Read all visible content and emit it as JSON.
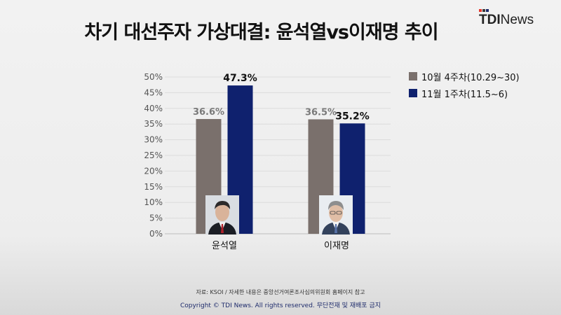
{
  "title": "차기 대선주자 가상대결: 윤석열vs이재명 추이",
  "logo": {
    "bold": "TDI",
    "regular": "News",
    "mark_colors": [
      "#e8372c",
      "#3a3a3a",
      "#1e2b6b"
    ]
  },
  "colors": {
    "series1": "#7a706c",
    "series2": "#0f216e",
    "label1": "#7a7a7a",
    "label2": "#111111",
    "grid": "#dcdcdc"
  },
  "icons": [
    "photo-yoon-icon",
    "photo-lee-icon"
  ],
  "chart_data": {
    "type": "bar",
    "categories": [
      "윤석열",
      "이재명"
    ],
    "series": [
      {
        "name": "10월 4주차(10.29~30)",
        "values": [
          36.6,
          36.5
        ],
        "labels": [
          "36.6%",
          "36.5%"
        ]
      },
      {
        "name": "11월 1주차(11.5~6)",
        "values": [
          47.3,
          35.2
        ],
        "labels": [
          "47.3%",
          "35.2%"
        ]
      }
    ],
    "yticks": [
      "0%",
      "5%",
      "10%",
      "15%",
      "20%",
      "25%",
      "30%",
      "35%",
      "40%",
      "45%",
      "50%"
    ],
    "ylim": [
      0,
      50
    ],
    "grid": true,
    "legend": "top-right"
  },
  "footer": {
    "note": "자료: KSOI / 자세한 내용은 중앙선거여론조사심의위원회 홈페이지 참고",
    "copyright": "Copyright © TDI News. All rights reserved. 무단전재 및 재배포 금지"
  }
}
